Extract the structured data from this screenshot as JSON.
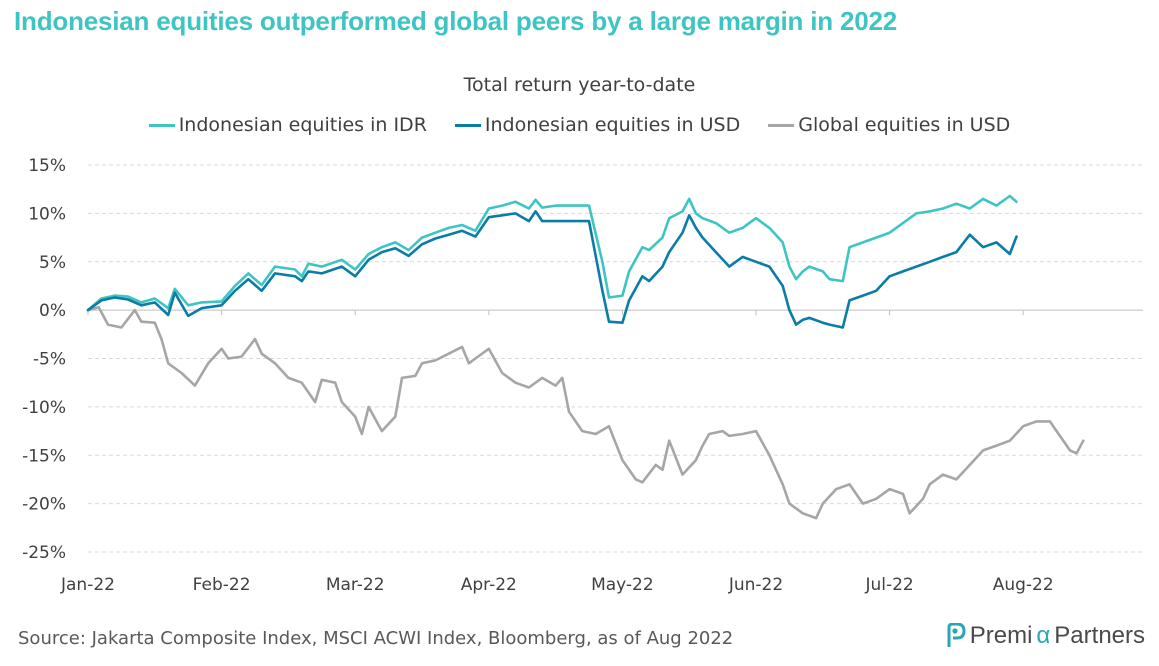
{
  "header": {
    "title": "Indonesian equities outperformed global peers by a large margin in 2022",
    "subtitle": "Total return year-to-date"
  },
  "footer": {
    "source": "Source: Jakarta Composite Index, MSCI ACWI Index, Bloomberg, as of Aug 2022",
    "brand_prefix": "Premi",
    "brand_alpha": "α",
    "brand_suffix": "Partners",
    "brand_icon": "p-logo-icon"
  },
  "colors": {
    "title": "#3fc4c4",
    "idr": "#3fc4c4",
    "usd": "#0a7ca8",
    "global": "#a6a6a6",
    "grid": "#d9d9d9"
  },
  "chart_data": {
    "type": "line",
    "title": "Total return year-to-date",
    "xlabel": "",
    "ylabel": "",
    "x_ticks": [
      "Jan-22",
      "Feb-22",
      "Mar-22",
      "Apr-22",
      "May-22",
      "Jun-22",
      "Jul-22",
      "Aug-22"
    ],
    "y_ticks": [
      "15%",
      "10%",
      "5%",
      "0%",
      "-5%",
      "-10%",
      "-15%",
      "-20%",
      "-25%"
    ],
    "ylim": [
      -25,
      15
    ],
    "xlim": [
      0,
      8
    ],
    "grid": "horizontal dashed",
    "legend": "top-center",
    "series": [
      {
        "name": "Indonesian equities in IDR",
        "color": "#3fc4c4",
        "points": [
          [
            0,
            0
          ],
          [
            0.1,
            1.2
          ],
          [
            0.2,
            1.5
          ],
          [
            0.3,
            1.4
          ],
          [
            0.4,
            0.8
          ],
          [
            0.5,
            1.2
          ],
          [
            0.6,
            0.2
          ],
          [
            0.65,
            2.2
          ],
          [
            0.75,
            0.5
          ],
          [
            0.85,
            0.8
          ],
          [
            1.0,
            0.9
          ],
          [
            1.1,
            2.5
          ],
          [
            1.2,
            3.8
          ],
          [
            1.3,
            2.6
          ],
          [
            1.4,
            4.5
          ],
          [
            1.55,
            4.2
          ],
          [
            1.6,
            3.5
          ],
          [
            1.65,
            4.8
          ],
          [
            1.75,
            4.5
          ],
          [
            1.9,
            5.2
          ],
          [
            2.0,
            4.2
          ],
          [
            2.1,
            5.8
          ],
          [
            2.2,
            6.5
          ],
          [
            2.3,
            7.0
          ],
          [
            2.4,
            6.2
          ],
          [
            2.5,
            7.5
          ],
          [
            2.6,
            8.0
          ],
          [
            2.7,
            8.5
          ],
          [
            2.8,
            8.8
          ],
          [
            2.9,
            8.2
          ],
          [
            3.0,
            10.5
          ],
          [
            3.1,
            10.8
          ],
          [
            3.2,
            11.2
          ],
          [
            3.3,
            10.5
          ],
          [
            3.35,
            11.4
          ],
          [
            3.4,
            10.6
          ],
          [
            3.5,
            10.8
          ],
          [
            3.6,
            10.8
          ],
          [
            3.7,
            10.8
          ],
          [
            3.75,
            10.8
          ],
          [
            3.85,
            5.0
          ],
          [
            3.9,
            1.3
          ],
          [
            4.0,
            1.5
          ],
          [
            4.05,
            4.0
          ],
          [
            4.15,
            6.5
          ],
          [
            4.2,
            6.2
          ],
          [
            4.3,
            7.5
          ],
          [
            4.35,
            9.5
          ],
          [
            4.45,
            10.2
          ],
          [
            4.5,
            11.5
          ],
          [
            4.55,
            10.0
          ],
          [
            4.6,
            9.5
          ],
          [
            4.7,
            9.0
          ],
          [
            4.8,
            8.0
          ],
          [
            4.9,
            8.5
          ],
          [
            5.0,
            9.5
          ],
          [
            5.1,
            8.5
          ],
          [
            5.2,
            7.0
          ],
          [
            5.25,
            4.5
          ],
          [
            5.3,
            3.2
          ],
          [
            5.35,
            4.0
          ],
          [
            5.4,
            4.5
          ],
          [
            5.5,
            4.0
          ],
          [
            5.55,
            3.2
          ],
          [
            5.65,
            3.0
          ],
          [
            5.7,
            6.5
          ],
          [
            5.8,
            7.0
          ],
          [
            5.9,
            7.5
          ],
          [
            6.0,
            8.0
          ],
          [
            6.1,
            9.0
          ],
          [
            6.2,
            10.0
          ],
          [
            6.3,
            10.2
          ],
          [
            6.4,
            10.5
          ],
          [
            6.5,
            11.0
          ],
          [
            6.6,
            10.5
          ],
          [
            6.7,
            11.5
          ],
          [
            6.8,
            10.8
          ],
          [
            6.9,
            11.8
          ],
          [
            6.95,
            11.2
          ]
        ]
      },
      {
        "name": "Indonesian equities in USD",
        "color": "#0a7ca8",
        "points": [
          [
            0,
            0
          ],
          [
            0.1,
            1.0
          ],
          [
            0.2,
            1.3
          ],
          [
            0.3,
            1.1
          ],
          [
            0.4,
            0.5
          ],
          [
            0.5,
            0.8
          ],
          [
            0.6,
            -0.5
          ],
          [
            0.65,
            1.8
          ],
          [
            0.75,
            -0.6
          ],
          [
            0.85,
            0.2
          ],
          [
            1.0,
            0.5
          ],
          [
            1.1,
            2.0
          ],
          [
            1.2,
            3.2
          ],
          [
            1.3,
            2.0
          ],
          [
            1.4,
            3.8
          ],
          [
            1.55,
            3.5
          ],
          [
            1.6,
            3.0
          ],
          [
            1.65,
            4.0
          ],
          [
            1.75,
            3.8
          ],
          [
            1.9,
            4.5
          ],
          [
            2.0,
            3.5
          ],
          [
            2.1,
            5.2
          ],
          [
            2.2,
            6.0
          ],
          [
            2.3,
            6.4
          ],
          [
            2.4,
            5.6
          ],
          [
            2.5,
            6.8
          ],
          [
            2.6,
            7.4
          ],
          [
            2.7,
            7.8
          ],
          [
            2.8,
            8.2
          ],
          [
            2.9,
            7.6
          ],
          [
            3.0,
            9.6
          ],
          [
            3.1,
            9.8
          ],
          [
            3.2,
            10.0
          ],
          [
            3.3,
            9.2
          ],
          [
            3.35,
            10.2
          ],
          [
            3.4,
            9.2
          ],
          [
            3.5,
            9.2
          ],
          [
            3.6,
            9.2
          ],
          [
            3.7,
            9.2
          ],
          [
            3.75,
            9.2
          ],
          [
            3.85,
            2.0
          ],
          [
            3.9,
            -1.2
          ],
          [
            4.0,
            -1.3
          ],
          [
            4.05,
            1.0
          ],
          [
            4.15,
            3.5
          ],
          [
            4.2,
            3.0
          ],
          [
            4.3,
            4.5
          ],
          [
            4.35,
            6.0
          ],
          [
            4.45,
            8.0
          ],
          [
            4.5,
            9.8
          ],
          [
            4.55,
            8.5
          ],
          [
            4.6,
            7.5
          ],
          [
            4.7,
            6.0
          ],
          [
            4.8,
            4.5
          ],
          [
            4.9,
            5.5
          ],
          [
            5.0,
            5.0
          ],
          [
            5.1,
            4.5
          ],
          [
            5.2,
            2.5
          ],
          [
            5.25,
            0.0
          ],
          [
            5.3,
            -1.5
          ],
          [
            5.35,
            -1.0
          ],
          [
            5.4,
            -0.8
          ],
          [
            5.5,
            -1.3
          ],
          [
            5.55,
            -1.5
          ],
          [
            5.65,
            -1.8
          ],
          [
            5.7,
            1.0
          ],
          [
            5.8,
            1.5
          ],
          [
            5.9,
            2.0
          ],
          [
            6.0,
            3.5
          ],
          [
            6.1,
            4.0
          ],
          [
            6.2,
            4.5
          ],
          [
            6.3,
            5.0
          ],
          [
            6.4,
            5.5
          ],
          [
            6.5,
            6.0
          ],
          [
            6.6,
            7.8
          ],
          [
            6.7,
            6.5
          ],
          [
            6.8,
            7.0
          ],
          [
            6.9,
            5.8
          ],
          [
            6.95,
            7.6
          ]
        ]
      },
      {
        "name": "Global equities in USD",
        "color": "#a6a6a6",
        "points": [
          [
            0,
            0
          ],
          [
            0.08,
            0.3
          ],
          [
            0.15,
            -1.5
          ],
          [
            0.25,
            -1.8
          ],
          [
            0.35,
            0.0
          ],
          [
            0.4,
            -1.2
          ],
          [
            0.5,
            -1.3
          ],
          [
            0.55,
            -3.0
          ],
          [
            0.6,
            -5.5
          ],
          [
            0.7,
            -6.5
          ],
          [
            0.8,
            -7.8
          ],
          [
            0.9,
            -5.5
          ],
          [
            1.0,
            -4.0
          ],
          [
            1.05,
            -5.0
          ],
          [
            1.15,
            -4.8
          ],
          [
            1.25,
            -3.0
          ],
          [
            1.3,
            -4.5
          ],
          [
            1.4,
            -5.5
          ],
          [
            1.5,
            -7.0
          ],
          [
            1.6,
            -7.5
          ],
          [
            1.7,
            -9.5
          ],
          [
            1.75,
            -7.2
          ],
          [
            1.85,
            -7.5
          ],
          [
            1.9,
            -9.5
          ],
          [
            2.0,
            -11.0
          ],
          [
            2.05,
            -12.8
          ],
          [
            2.1,
            -10.0
          ],
          [
            2.2,
            -12.5
          ],
          [
            2.3,
            -11.0
          ],
          [
            2.35,
            -7.0
          ],
          [
            2.45,
            -6.8
          ],
          [
            2.5,
            -5.5
          ],
          [
            2.6,
            -5.2
          ],
          [
            2.7,
            -4.5
          ],
          [
            2.8,
            -3.8
          ],
          [
            2.85,
            -5.5
          ],
          [
            2.9,
            -5.0
          ],
          [
            3.0,
            -4.0
          ],
          [
            3.1,
            -6.5
          ],
          [
            3.2,
            -7.5
          ],
          [
            3.3,
            -8.0
          ],
          [
            3.4,
            -7.0
          ],
          [
            3.5,
            -7.8
          ],
          [
            3.55,
            -7.0
          ],
          [
            3.6,
            -10.5
          ],
          [
            3.7,
            -12.5
          ],
          [
            3.8,
            -12.8
          ],
          [
            3.9,
            -12.0
          ],
          [
            4.0,
            -15.5
          ],
          [
            4.1,
            -17.5
          ],
          [
            4.15,
            -17.8
          ],
          [
            4.25,
            -16.0
          ],
          [
            4.3,
            -16.5
          ],
          [
            4.35,
            -13.5
          ],
          [
            4.45,
            -17.0
          ],
          [
            4.55,
            -15.5
          ],
          [
            4.6,
            -14.0
          ],
          [
            4.65,
            -12.8
          ],
          [
            4.75,
            -12.5
          ],
          [
            4.8,
            -13.0
          ],
          [
            4.9,
            -12.8
          ],
          [
            5.0,
            -12.5
          ],
          [
            5.1,
            -15.0
          ],
          [
            5.2,
            -18.0
          ],
          [
            5.25,
            -20.0
          ],
          [
            5.35,
            -21.0
          ],
          [
            5.45,
            -21.5
          ],
          [
            5.5,
            -20.0
          ],
          [
            5.6,
            -18.5
          ],
          [
            5.7,
            -18.0
          ],
          [
            5.8,
            -20.0
          ],
          [
            5.9,
            -19.5
          ],
          [
            6.0,
            -18.5
          ],
          [
            6.1,
            -19.0
          ],
          [
            6.15,
            -21.0
          ],
          [
            6.25,
            -19.5
          ],
          [
            6.3,
            -18.0
          ],
          [
            6.4,
            -17.0
          ],
          [
            6.5,
            -17.5
          ],
          [
            6.6,
            -16.0
          ],
          [
            6.7,
            -14.5
          ],
          [
            6.8,
            -14.0
          ],
          [
            6.9,
            -13.5
          ],
          [
            7.0,
            -12.0
          ],
          [
            7.1,
            -11.5
          ],
          [
            7.2,
            -11.5
          ],
          [
            7.25,
            -12.5
          ],
          [
            7.35,
            -14.5
          ],
          [
            7.4,
            -14.8
          ],
          [
            7.45,
            -13.5
          ]
        ]
      }
    ]
  }
}
